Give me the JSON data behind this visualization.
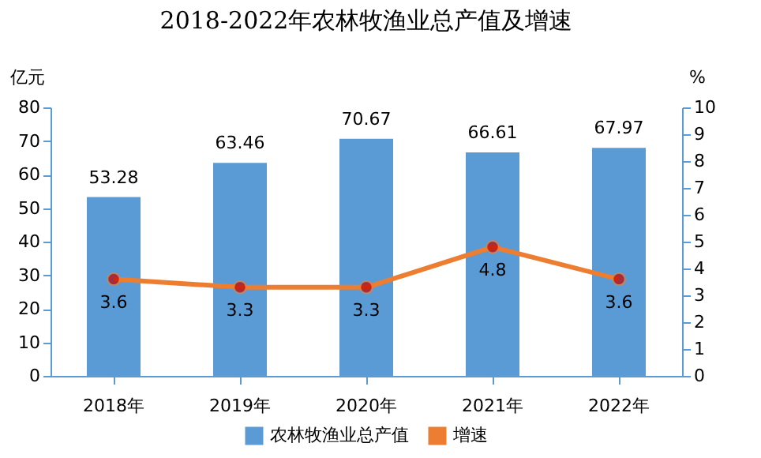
{
  "chart_data": {
    "type": "bar",
    "title": "2018-2022年农林牧渔业总产值及增速",
    "ylabel": "亿元",
    "y2label": "%",
    "categories": [
      "2018年",
      "2019年",
      "2020年",
      "2021年",
      "2022年"
    ],
    "series": [
      {
        "name": "农林牧渔业总产值",
        "type": "bar",
        "color": "#5b9bd5",
        "values": [
          53.28,
          63.46,
          70.67,
          66.61,
          67.97
        ]
      },
      {
        "name": "增速",
        "type": "line",
        "axis": "y2",
        "color": "#ed7d31",
        "values": [
          3.6,
          3.3,
          3.3,
          4.8,
          3.6
        ]
      }
    ],
    "ylim": [
      0,
      80
    ],
    "yticks": [
      0,
      10,
      20,
      30,
      40,
      50,
      60,
      70,
      80
    ],
    "y2lim": [
      0,
      10
    ],
    "y2ticks": [
      0,
      1,
      2,
      3,
      4,
      5,
      6,
      7,
      8,
      9,
      10
    ],
    "data_labels": true,
    "legend": "bottom",
    "marker": "circle",
    "line_style": "solid",
    "grid": false
  }
}
